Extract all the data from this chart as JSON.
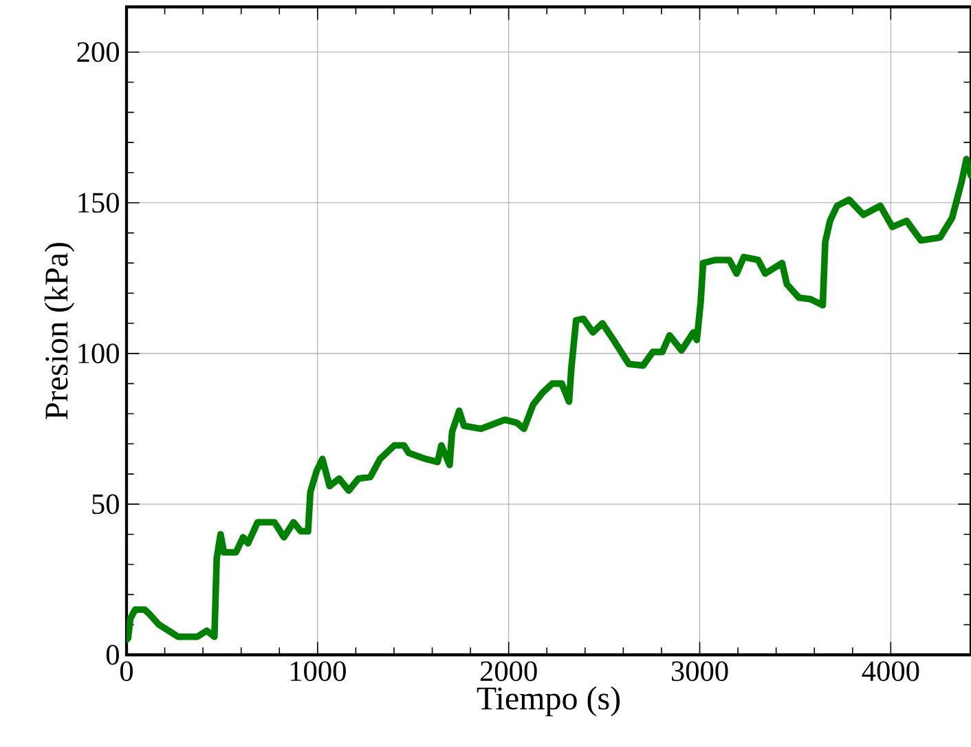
{
  "chart_data": {
    "type": "line",
    "xlabel": "Tiempo (s)",
    "ylabel": "Presion (kPa)",
    "xlim": [
      0,
      4420
    ],
    "ylim": [
      0,
      215
    ],
    "xticks": [
      0,
      1000,
      2000,
      3000,
      4000
    ],
    "yticks": [
      0,
      50,
      100,
      150,
      200
    ],
    "grid": true,
    "marker": "none",
    "line_style": "solid",
    "series": [
      {
        "color": "#008000",
        "x": [
          0,
          8,
          20,
          45,
          95,
          120,
          170,
          220,
          270,
          370,
          420,
          460,
          472,
          492,
          510,
          573,
          610,
          636,
          686,
          774,
          824,
          874,
          912,
          950,
          962,
          995,
          1025,
          1063,
          1113,
          1163,
          1214,
          1276,
          1327,
          1402,
          1452,
          1477,
          1565,
          1628,
          1648,
          1691,
          1704,
          1741,
          1766,
          1854,
          1980,
          2043,
          2080,
          2128,
          2178,
          2228,
          2278,
          2316,
          2328,
          2353,
          2391,
          2441,
          2491,
          2554,
          2629,
          2704,
          2754,
          2804,
          2842,
          2905,
          2967,
          2985,
          3005,
          3018,
          3080,
          3155,
          3193,
          3231,
          3306,
          3343,
          3431,
          3456,
          3519,
          3581,
          3644,
          3657,
          3682,
          3719,
          3782,
          3857,
          3945,
          4008,
          4083,
          4158,
          4258,
          4321,
          4371,
          4396,
          4420
        ],
        "values": [
          5,
          5.5,
          12,
          15,
          15,
          13.5,
          10,
          8,
          6,
          6,
          8,
          6,
          32,
          40,
          34,
          34,
          39,
          37,
          44,
          44,
          39,
          44,
          41,
          41,
          54,
          61,
          65,
          56,
          58.5,
          54.5,
          58.5,
          59,
          65,
          69.5,
          69.5,
          67,
          65,
          64,
          69.5,
          63,
          74,
          81,
          76,
          75,
          78,
          77,
          75,
          83,
          87,
          90,
          90,
          84,
          95,
          111,
          111.5,
          107,
          110,
          104,
          96.5,
          96,
          100.5,
          100.5,
          106,
          101,
          107,
          104.5,
          117,
          130,
          131,
          131,
          126.5,
          132,
          131,
          126.5,
          130,
          123,
          118.5,
          118,
          116,
          137,
          144,
          149,
          151,
          146,
          149,
          142,
          144,
          137.5,
          138.5,
          145,
          157,
          164.5,
          159
        ]
      }
    ]
  }
}
